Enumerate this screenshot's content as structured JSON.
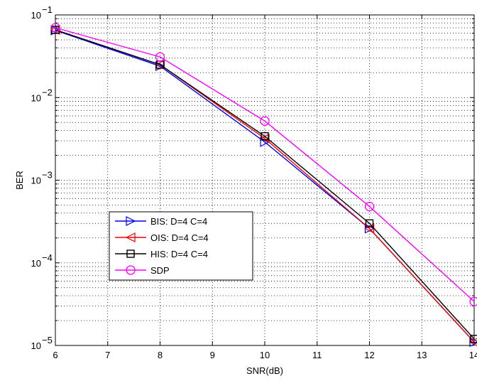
{
  "chart_data": {
    "type": "line",
    "xlabel": "SNR(dB)",
    "ylabel": "BER",
    "xlim": [
      6,
      14
    ],
    "ylim": [
      1e-05,
      0.1
    ],
    "yscale": "log",
    "grid": true,
    "legend_position": "lower-left",
    "x": [
      6,
      8,
      10,
      12,
      14
    ],
    "x_tick_labels": [
      "6",
      "7",
      "8",
      "9",
      "10",
      "11",
      "12",
      "13",
      "14"
    ],
    "y_tick_labels": [
      {
        "base": "10",
        "exp": "−5"
      },
      {
        "base": "10",
        "exp": "−4"
      },
      {
        "base": "10",
        "exp": "−3"
      },
      {
        "base": "10",
        "exp": "−2"
      },
      {
        "base": "10",
        "exp": "−1"
      }
    ],
    "series": [
      {
        "name": "BIS: D=4 C=4",
        "color": "#0000ff",
        "marker": "triangle-right",
        "values": [
          0.065,
          0.024,
          0.0029,
          0.00026,
          1.1e-05
        ]
      },
      {
        "name": "OIS: D=4 C=4",
        "color": "#ff0000",
        "marker": "triangle-left",
        "values": [
          0.066,
          0.025,
          0.0032,
          0.00026,
          1.1e-05
        ]
      },
      {
        "name": "HIS: D=4 C=4",
        "color": "#000000",
        "marker": "square",
        "values": [
          0.066,
          0.025,
          0.0034,
          0.0003,
          1.2e-05
        ]
      },
      {
        "name": "SDP",
        "color": "#ff00ff",
        "marker": "circle",
        "values": [
          0.07,
          0.031,
          0.0052,
          0.00048,
          3.4e-05
        ]
      }
    ]
  }
}
